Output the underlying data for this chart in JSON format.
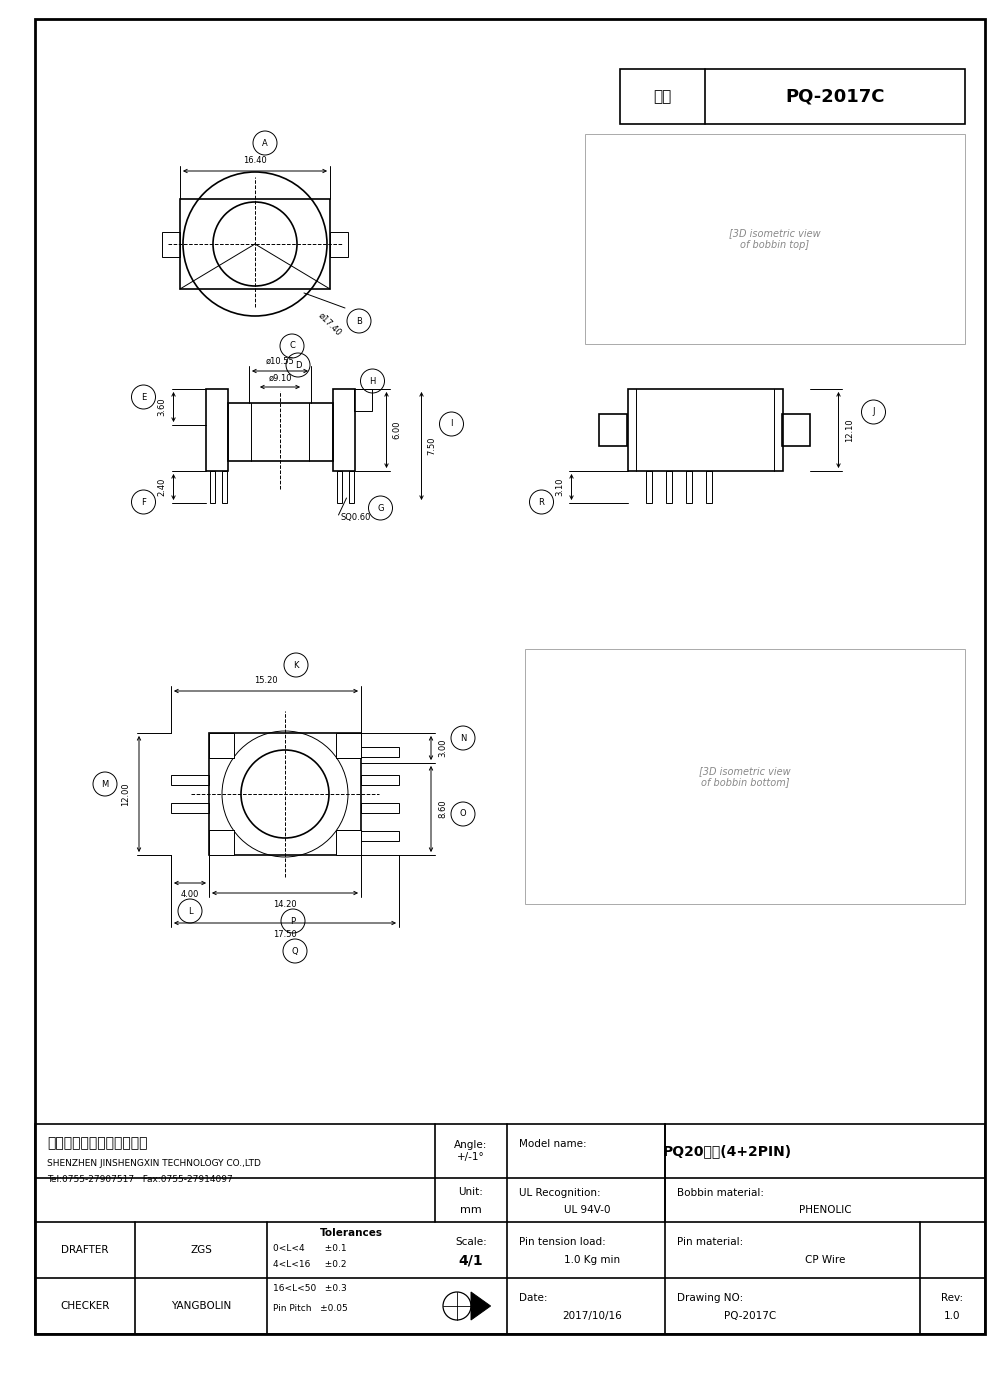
{
  "title": "PQ-2017C",
  "type_label": "型号",
  "model_name": "PQ20立式(4+2PIN)",
  "company_cn": "深圳市金盛鑫科技有限公司",
  "company_en": "SHENZHEN JINSHENGXIN TECHNOLOGY CO.,LTD",
  "tel": "Tel:0755-27907517   Fax:0755-27914097",
  "angle": "Angle:\n+/-1°",
  "unit_label": "Unit:",
  "unit_val": "mm",
  "scale_label": "Scale:",
  "scale_val": "4/1",
  "drafter_label": "DRAFTER",
  "drafter": "ZGS",
  "checker_label": "CHECKER",
  "checker": "YANGBOLIN",
  "tolerances_title": "Tolerances",
  "tol1": "0<L<4       ±0.1",
  "tol2": "4<L<16     ±0.2",
  "tol3": "16<L<50   ±0.3",
  "tol4": "Pin Pitch   ±0.05",
  "date_label": "Date:",
  "date_val": "2017/10/16",
  "drawing_no_label": "Drawing NO:",
  "drawing_no_val": "PQ-2017C",
  "rev_label": "Rev:",
  "rev_val": "1.0",
  "dim_A": "16.40",
  "dim_B": "ø17.40",
  "dim_C": "ø10.55",
  "dim_D": "ø9.10",
  "dim_E": "3.60",
  "dim_F": "2.40",
  "dim_G": "SQ0.60",
  "dim_H": "6.00",
  "dim_I": "7.50",
  "dim_J": "12.10",
  "dim_K": "15.20",
  "dim_L": "4.00",
  "dim_M": "12.00",
  "dim_N": "3.00",
  "dim_O": "8.60",
  "dim_P": "14.20",
  "dim_Q": "17.50",
  "dim_R": "3.10",
  "bg_color": "#ffffff",
  "line_color": "#000000"
}
